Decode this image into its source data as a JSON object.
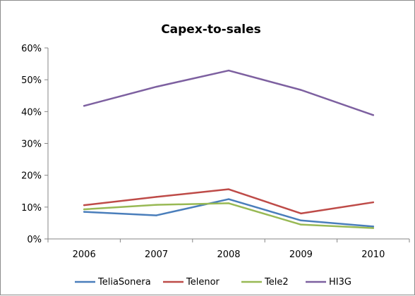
{
  "chart_data": {
    "type": "line",
    "title": "Capex-to-sales",
    "xlabel": "",
    "ylabel": "",
    "x": [
      "2006",
      "2007",
      "2008",
      "2009",
      "2010"
    ],
    "ylim": [
      0,
      0.6
    ],
    "yticks": [
      0,
      0.1,
      0.2,
      0.3,
      0.4,
      0.5,
      0.6
    ],
    "ytick_labels": [
      "0%",
      "10%",
      "20%",
      "30%",
      "40%",
      "50%",
      "60%"
    ],
    "grid": false,
    "legend_position": "bottom",
    "series": [
      {
        "name": "TeliaSonera",
        "color": "#4a7ebb",
        "values": [
          0.085,
          0.074,
          0.125,
          0.058,
          0.039
        ]
      },
      {
        "name": "Telenor",
        "color": "#be4b48",
        "values": [
          0.106,
          0.132,
          0.156,
          0.08,
          0.115
        ]
      },
      {
        "name": "Tele2",
        "color": "#98b954",
        "values": [
          0.093,
          0.107,
          0.112,
          0.045,
          0.034
        ]
      },
      {
        "name": "HI3G",
        "color": "#7d60a0",
        "values": [
          0.418,
          0.478,
          0.529,
          0.468,
          0.389
        ]
      }
    ]
  }
}
